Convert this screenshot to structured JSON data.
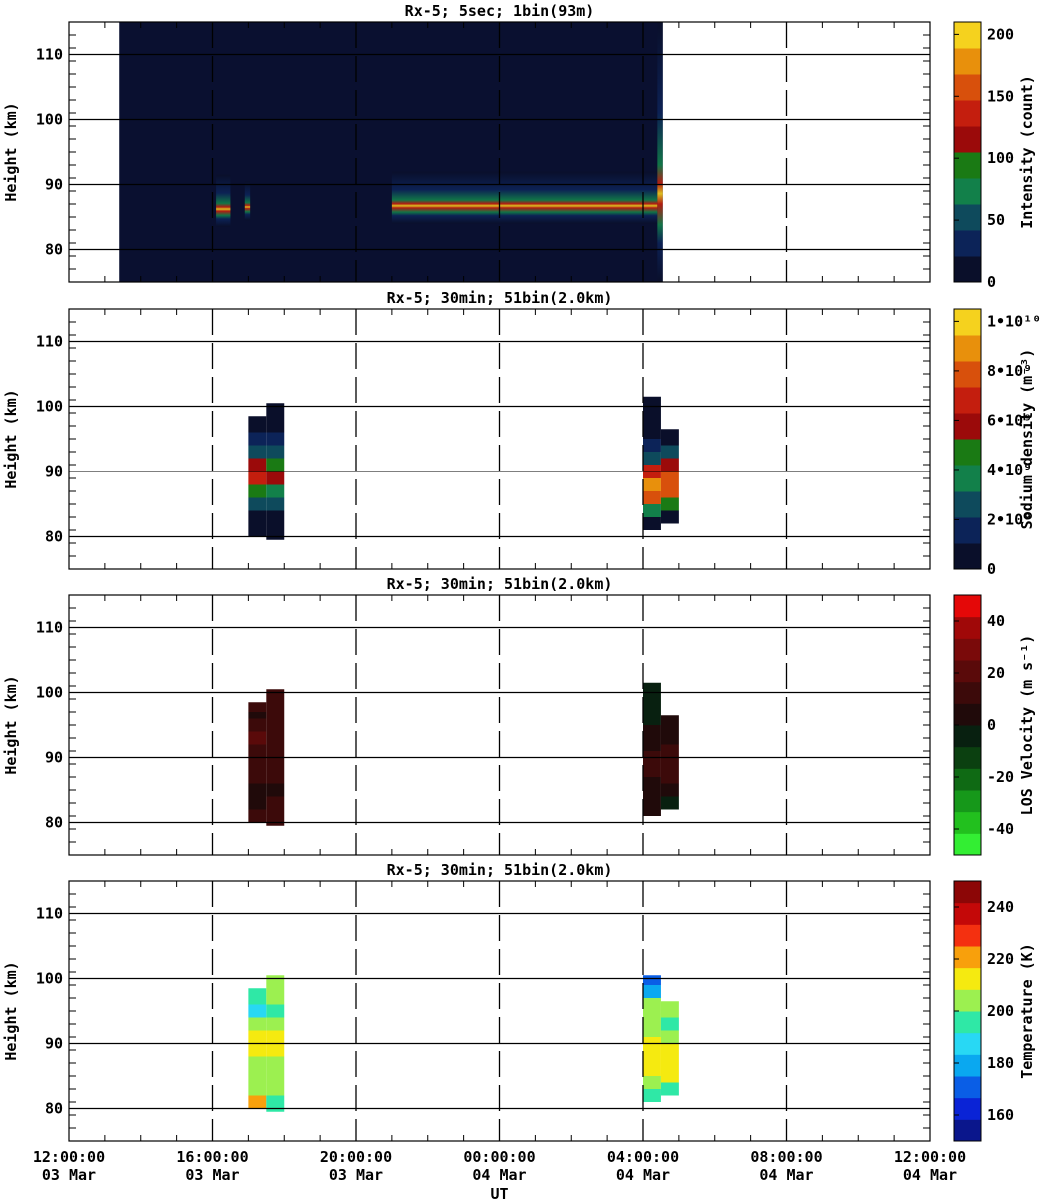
{
  "chart_data": [
    {
      "type": "heatmap",
      "title": "Rx-5;  5sec; 1bin(93m)",
      "ylabel": "Height (km)",
      "ylim": [
        75,
        115
      ],
      "y_ticks": [
        80,
        90,
        100,
        110
      ],
      "colorbar": {
        "label": "Intensity (count)",
        "range": [
          0,
          210
        ],
        "ticks": [
          "0",
          "50",
          "100",
          "150",
          "200"
        ],
        "tick_values": [
          0,
          50,
          100,
          150,
          200
        ],
        "colors": [
          "#0a0f2a",
          "#0c2358",
          "#0e4a5c",
          "#12804a",
          "#1a7a14",
          "#9b0a0a",
          "#c41e0e",
          "#d8500c",
          "#e8900c",
          "#f5d21e"
        ]
      },
      "data_extent_hours": [
        1.4,
        16.55
      ],
      "data": [
        {
          "t_start": 1.4,
          "t_end": 4.1,
          "alt_center": 88,
          "alt_width": 20,
          "intensity": 2
        },
        {
          "t_start": 4.1,
          "t_end": 4.5,
          "alt_center": 87.5,
          "alt_width": 8,
          "intensity": 190
        },
        {
          "t_start": 4.9,
          "t_end": 5.05,
          "alt_center": 87.5,
          "alt_width": 6,
          "intensity": 150
        },
        {
          "t_start": 9.0,
          "t_end": 16.4,
          "alt_center": 88,
          "alt_width": 8,
          "intensity": 140
        },
        {
          "t_start": 16.4,
          "t_end": 16.55,
          "alt_center": 95,
          "alt_width": 40,
          "intensity": 180
        }
      ]
    },
    {
      "type": "heatmap",
      "title": "Rx-5; 30min; 51bin(2.0km)",
      "ylabel": "Height (km)",
      "ylim": [
        75,
        115
      ],
      "y_ticks": [
        80,
        90,
        100,
        110
      ],
      "colorbar": {
        "label": "Sodium density (m⁻³)",
        "range": [
          0,
          10500000000
        ],
        "ticks": [
          "0",
          "2•10⁹",
          "4•10⁹",
          "6•10⁹",
          "8•10⁹",
          "1•10¹⁰"
        ],
        "tick_values": [
          0,
          2000000000,
          4000000000,
          6000000000,
          8000000000,
          10000000000
        ],
        "colors": [
          "#0a0f2a",
          "#0c2358",
          "#0e4a5c",
          "#12804a",
          "#1a7a14",
          "#9b0a0a",
          "#c41e0e",
          "#d8500c",
          "#e8900c",
          "#f5d21e"
        ]
      },
      "data": [
        {
          "t_start": 5.0,
          "t_end": 5.5,
          "profile": [
            [
              80,
              200000000
            ],
            [
              82,
              1000000000
            ],
            [
              84,
              3000000000
            ],
            [
              86,
              4500000000
            ],
            [
              88,
              6500000000
            ],
            [
              90,
              5500000000
            ],
            [
              92,
              3000000000
            ],
            [
              94,
              1500000000
            ],
            [
              96,
              800000000
            ],
            [
              97,
              300000000
            ]
          ]
        },
        {
          "t_start": 5.5,
          "t_end": 6.0,
          "profile": [
            [
              79.5,
              200000000
            ],
            [
              82,
              800000000
            ],
            [
              84,
              2800000000
            ],
            [
              86,
              4000000000
            ],
            [
              88,
              6000000000
            ],
            [
              90,
              5000000000
            ],
            [
              92,
              2800000000
            ],
            [
              94,
              1200000000
            ],
            [
              96,
              500000000
            ],
            [
              99,
              200000000
            ]
          ]
        },
        {
          "t_start": 16.0,
          "t_end": 16.5,
          "profile": [
            [
              81,
              400000000
            ],
            [
              83,
              3500000000
            ],
            [
              85,
              7500000000
            ],
            [
              87,
              8500000000
            ],
            [
              89,
              7000000000
            ],
            [
              91,
              3000000000
            ],
            [
              93,
              1500000000
            ],
            [
              95,
              500000000
            ],
            [
              97,
              200000000
            ],
            [
              100,
              100000000
            ]
          ]
        },
        {
          "t_start": 16.5,
          "t_end": 17.0,
          "profile": [
            [
              82,
              500000000
            ],
            [
              84,
              5000000000
            ],
            [
              86,
              8000000000
            ],
            [
              88,
              8200000000
            ],
            [
              90,
              6000000000
            ],
            [
              92,
              3000000000
            ],
            [
              94,
              1000000000
            ],
            [
              95,
              300000000
            ]
          ]
        }
      ]
    },
    {
      "type": "heatmap",
      "title": "Rx-5; 30min; 51bin(2.0km)",
      "ylabel": "Height (km)",
      "ylim": [
        75,
        115
      ],
      "y_ticks": [
        80,
        90,
        100,
        110
      ],
      "colorbar": {
        "label": "LOS Velocity (m s⁻¹)",
        "range": [
          -50,
          50
        ],
        "ticks": [
          "-40",
          "-20",
          "0",
          "20",
          "40"
        ],
        "tick_values": [
          -40,
          -20,
          0,
          20,
          40
        ],
        "colors": [
          "#33ee33",
          "#22c01e",
          "#16981a",
          "#0f6a14",
          "#0b4010",
          "#082010",
          "#200a0a",
          "#3c0a0a",
          "#5a0a0a",
          "#7a0a0a",
          "#a00808",
          "#e40808"
        ]
      },
      "data": [
        {
          "t_start": 5.0,
          "t_end": 5.5,
          "profile": [
            [
              80,
              10
            ],
            [
              82,
              8
            ],
            [
              84,
              8
            ],
            [
              86,
              9
            ],
            [
              88,
              12
            ],
            [
              90,
              15
            ],
            [
              92,
              18
            ],
            [
              94,
              14
            ],
            [
              96,
              5
            ],
            [
              97,
              10
            ]
          ]
        },
        {
          "t_start": 5.5,
          "t_end": 6.0,
          "profile": [
            [
              79.5,
              10
            ],
            [
              82,
              9
            ],
            [
              84,
              8
            ],
            [
              86,
              10
            ],
            [
              88,
              12
            ],
            [
              90,
              14
            ],
            [
              92,
              16
            ],
            [
              94,
              15
            ],
            [
              96,
              14
            ],
            [
              99,
              14
            ]
          ]
        },
        {
          "t_start": 16.0,
          "t_end": 16.5,
          "profile": [
            [
              81,
              6
            ],
            [
              83,
              6
            ],
            [
              85,
              8
            ],
            [
              87,
              10
            ],
            [
              89,
              12
            ],
            [
              91,
              8
            ],
            [
              93,
              4
            ],
            [
              95,
              -2
            ],
            [
              97,
              -3
            ],
            [
              100,
              -4
            ]
          ]
        },
        {
          "t_start": 16.5,
          "t_end": 17.0,
          "profile": [
            [
              82,
              -6
            ],
            [
              84,
              4
            ],
            [
              86,
              10
            ],
            [
              88,
              12
            ],
            [
              90,
              10
            ],
            [
              92,
              6
            ],
            [
              94,
              4
            ],
            [
              95,
              6
            ]
          ]
        }
      ]
    },
    {
      "type": "heatmap",
      "title": "Rx-5; 30min; 51bin(2.0km)",
      "ylabel": "Height (km)",
      "ylim": [
        75,
        115
      ],
      "y_ticks": [
        80,
        90,
        100,
        110
      ],
      "xlabel": "UT",
      "colorbar": {
        "label": "Temperature (K)",
        "range": [
          150,
          250
        ],
        "ticks": [
          "160",
          "180",
          "200",
          "220",
          "240"
        ],
        "tick_values": [
          160,
          180,
          200,
          220,
          240
        ],
        "colors": [
          "#0a168c",
          "#0a23d6",
          "#0a5ee6",
          "#0aa8f0",
          "#28d8f4",
          "#2fe8a6",
          "#9cf050",
          "#f5ea10",
          "#f8a00c",
          "#f43010",
          "#c40808",
          "#8c0606"
        ]
      },
      "data": [
        {
          "t_start": 5.0,
          "t_end": 5.5,
          "profile": [
            [
              80,
              218
            ],
            [
              82,
              205
            ],
            [
              84,
              205
            ],
            [
              86,
              205
            ],
            [
              88,
              214
            ],
            [
              90,
              213
            ],
            [
              92,
              200
            ],
            [
              94,
              190
            ],
            [
              96,
              194
            ],
            [
              97,
              194
            ]
          ]
        },
        {
          "t_start": 5.5,
          "t_end": 6.0,
          "profile": [
            [
              79.5,
              196
            ],
            [
              82,
              205
            ],
            [
              84,
              205
            ],
            [
              86,
              205
            ],
            [
              88,
              214
            ],
            [
              90,
              214
            ],
            [
              92,
              202
            ],
            [
              94,
              196
            ],
            [
              96,
              205
            ],
            [
              99,
              205
            ]
          ]
        },
        {
          "t_start": 16.0,
          "t_end": 16.5,
          "profile": [
            [
              81,
              196
            ],
            [
              83,
              205
            ],
            [
              85,
              214
            ],
            [
              87,
              214
            ],
            [
              89,
              214
            ],
            [
              91,
              205
            ],
            [
              93,
              205
            ],
            [
              95,
              205
            ],
            [
              97,
              178
            ],
            [
              99,
              172
            ]
          ]
        },
        {
          "t_start": 16.5,
          "t_end": 17.0,
          "profile": [
            [
              82,
              196
            ],
            [
              84,
              214
            ],
            [
              86,
              214
            ],
            [
              88,
              214
            ],
            [
              90,
              205
            ],
            [
              92,
              196
            ],
            [
              94,
              205
            ],
            [
              95,
              205
            ]
          ]
        }
      ]
    }
  ],
  "x_axis": {
    "range_hours": [
      0,
      24
    ],
    "ticks": [
      {
        "hour": 0,
        "time": "12:00:00",
        "date": "03 Mar"
      },
      {
        "hour": 4,
        "time": "16:00:00",
        "date": "03 Mar"
      },
      {
        "hour": 8,
        "time": "20:00:00",
        "date": "03 Mar"
      },
      {
        "hour": 12,
        "time": "00:00:00",
        "date": "04 Mar"
      },
      {
        "hour": 16,
        "time": "04:00:00",
        "date": "04 Mar"
      },
      {
        "hour": 20,
        "time": "08:00:00",
        "date": "04 Mar"
      },
      {
        "hour": 24,
        "time": "12:00:00",
        "date": "04 Mar"
      }
    ],
    "label": "UT"
  }
}
